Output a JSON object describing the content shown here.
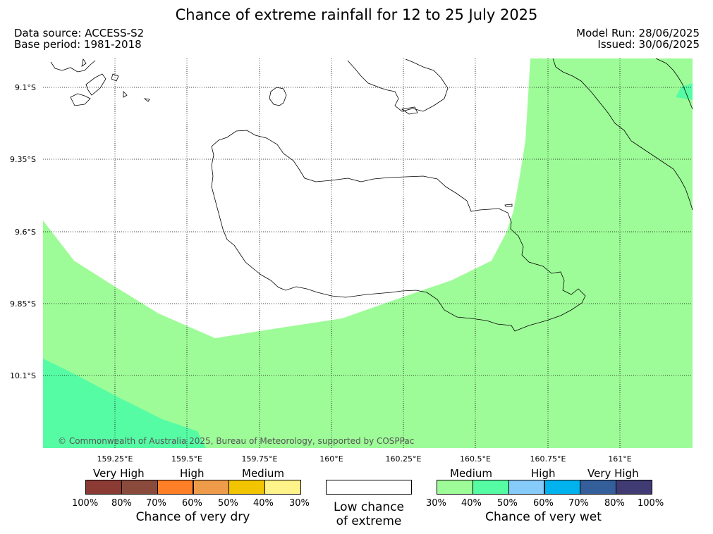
{
  "header": {
    "title": "Chance of extreme rainfall for 12 to 25 July 2025",
    "data_source": "Data source: ACCESS-S2",
    "base_period": "Base period: 1981-2018",
    "model_run": "Model Run: 28/06/2025",
    "issued": "Issued: 30/06/2025"
  },
  "map": {
    "latitude_labels": [
      "9.1°S",
      "9.35°S",
      "9.6°S",
      "9.85°S",
      "10.1°S"
    ],
    "longitude_labels": [
      "159.25°E",
      "159.5°E",
      "159.75°E",
      "160°E",
      "160.25°E",
      "160.5°E",
      "160.75°E",
      "161°E"
    ],
    "copyright": "© Commonwealth of Australia 2025, Bureau of Meteorology, supported by COSPPac",
    "colors": {
      "wet_30_40": "#9efc98",
      "wet_40_50": "#56fca4",
      "low_chance": "#ffffff",
      "coast": "#000000"
    }
  },
  "legend": {
    "dry": {
      "categories": [
        "Very High",
        "High",
        "Medium"
      ],
      "colors": [
        "#8b3a34",
        "#8b4b3c",
        "#ff7f27",
        "#ee9b4a",
        "#f2c500",
        "#fff48a"
      ],
      "ticks": [
        "100%",
        "80%",
        "70%",
        "60%",
        "50%",
        "40%",
        "30%"
      ],
      "caption": "Chance of very dry"
    },
    "neutral": {
      "caption_line1": "Low chance",
      "caption_line2": "of extreme",
      "color": "#ffffff"
    },
    "wet": {
      "categories": [
        "Medium",
        "High",
        "Very High"
      ],
      "colors": [
        "#9efc98",
        "#56fca4",
        "#87cbfa",
        "#00b2ee",
        "#355f9b",
        "#403b73"
      ],
      "ticks": [
        "30%",
        "40%",
        "50%",
        "60%",
        "70%",
        "80%",
        "100%"
      ],
      "caption": "Chance of very wet"
    }
  }
}
